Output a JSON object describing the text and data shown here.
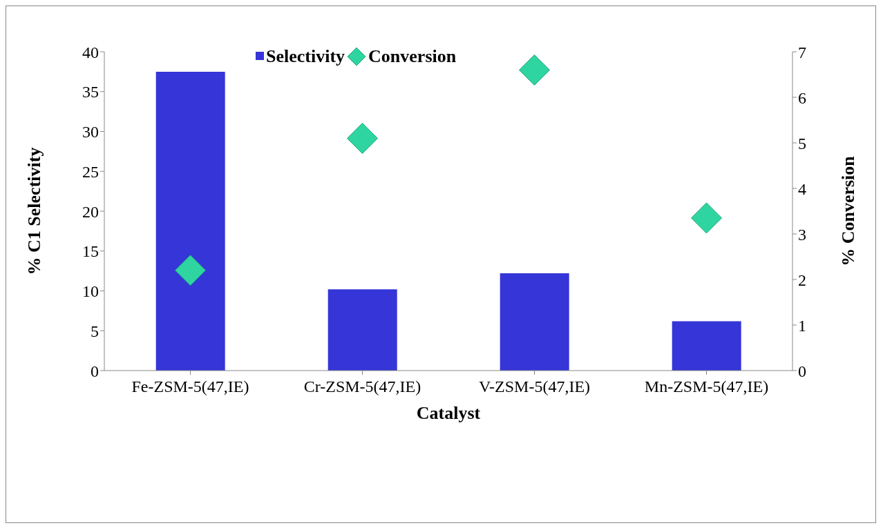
{
  "chart_data": {
    "type": "bar",
    "xlabel": "Catalyst",
    "ylabel": "% C1 Selectivity",
    "y2label": "% Conversion",
    "categories": [
      "Fe-ZSM-5(47,IE)",
      "Cr-ZSM-5(47,IE)",
      "V-ZSM-5(47,IE)",
      "Mn-ZSM-5(47,IE)"
    ],
    "series": [
      {
        "name": "Selectivity",
        "color": "#3535d8",
        "values": [
          37.5,
          10.2,
          12.2,
          6.2
        ]
      },
      {
        "name": "Conversion",
        "type": "scatter",
        "axis": "y2",
        "color": "#2fd5a0",
        "values": [
          2.2,
          5.1,
          6.6,
          3.35
        ]
      }
    ],
    "ylim": [
      0,
      40
    ],
    "yticks": [
      0,
      5,
      10,
      15,
      20,
      25,
      30,
      35,
      40
    ],
    "y2lim": [
      0,
      7
    ],
    "y2ticks": [
      0,
      1,
      2,
      3,
      4,
      5,
      6,
      7
    ],
    "marker": "diamond",
    "grid": false,
    "legend": "top"
  }
}
